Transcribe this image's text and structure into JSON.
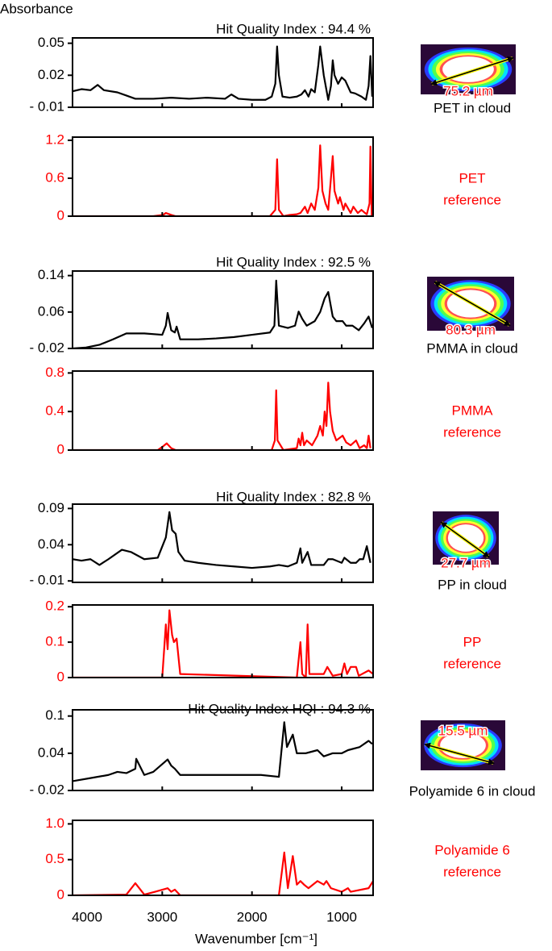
{
  "chart_data": [
    {
      "type": "line",
      "y_label": "Absorbance",
      "title": "Hit Quality Index : 94.4 %",
      "sample_label": "PET in cloud",
      "particle_size": "75.2 µm",
      "color": "#000000",
      "xlim": [
        4000,
        650
      ],
      "xticks": [
        4000,
        3000,
        2000,
        1000
      ],
      "ylim": [
        -0.01,
        0.055
      ],
      "yticks": [
        {
          "value": -0.01,
          "label": "- 0.01"
        },
        0.02,
        0.05
      ],
      "x": [
        4000,
        3900,
        3800,
        3720,
        3650,
        3500,
        3400,
        3300,
        3100,
        2900,
        2700,
        2500,
        2300,
        2230,
        2150,
        2000,
        1850,
        1780,
        1740,
        1720,
        1700,
        1660,
        1580,
        1500,
        1450,
        1410,
        1370,
        1340,
        1300,
        1260,
        1240,
        1200,
        1150,
        1120,
        1100,
        1080,
        1040,
        1000,
        960,
        900,
        850,
        780,
        730,
        700,
        680,
        660
      ],
      "values": [
        0.005,
        0.007,
        0.006,
        0.011,
        0.006,
        0.004,
        0.001,
        -0.002,
        -0.002,
        -0.001,
        -0.002,
        -0.001,
        -0.002,
        0.002,
        -0.002,
        -0.003,
        -0.003,
        0.0,
        0.012,
        0.047,
        0.02,
        0.0,
        -0.001,
        0.0,
        0.002,
        0.006,
        0.0,
        0.007,
        0.004,
        0.03,
        0.047,
        0.02,
        -0.003,
        0.01,
        0.034,
        0.02,
        0.012,
        0.018,
        0.015,
        0.004,
        0.003,
        0.0,
        -0.003,
        0.01,
        0.038,
        0.0
      ]
    },
    {
      "type": "line",
      "sample_label": [
        "PET",
        "reference"
      ],
      "color": "#ff0000",
      "xlim": [
        4000,
        650
      ],
      "xticks": [
        4000,
        3000,
        2000,
        1000
      ],
      "ylim": [
        0,
        1.25
      ],
      "yticks": [
        0,
        0.6,
        1.2
      ],
      "x": [
        4000,
        3100,
        2990,
        2960,
        2900,
        2850,
        1800,
        1740,
        1720,
        1700,
        1650,
        1580,
        1500,
        1460,
        1410,
        1380,
        1340,
        1300,
        1260,
        1240,
        1215,
        1180,
        1150,
        1120,
        1100,
        1080,
        1040,
        1020,
        980,
        960,
        900,
        870,
        820,
        780,
        740,
        720,
        690,
        680,
        665
      ],
      "values": [
        0,
        0,
        0.02,
        0.05,
        0.02,
        0,
        0,
        0.1,
        0.9,
        0.1,
        0,
        0.02,
        0.03,
        0.05,
        0.15,
        0.05,
        0.2,
        0.1,
        0.45,
        1.12,
        0.4,
        0.2,
        0.1,
        0.6,
        0.95,
        0.4,
        0.2,
        0.3,
        0.1,
        0.2,
        0.05,
        0.15,
        0.05,
        0.1,
        0.05,
        0.03,
        0.2,
        1.1,
        0
      ]
    },
    {
      "type": "line",
      "title": "Hit Quality Index : 92.5 %",
      "sample_label": "PMMA in cloud",
      "particle_size": "80.3 µm",
      "color": "#000000",
      "xlim": [
        4000,
        650
      ],
      "xticks": [
        4000,
        3000,
        2000,
        1000
      ],
      "ylim": [
        -0.02,
        0.15
      ],
      "yticks": [
        {
          "value": -0.02,
          "label": "- 0.02"
        },
        0.06,
        0.14
      ],
      "x": [
        4000,
        3850,
        3700,
        3550,
        3400,
        3200,
        3000,
        2960,
        2940,
        2900,
        2860,
        2840,
        2800,
        2600,
        2400,
        2200,
        2000,
        1800,
        1750,
        1730,
        1700,
        1600,
        1520,
        1480,
        1440,
        1390,
        1300,
        1240,
        1190,
        1150,
        1100,
        1060,
        990,
        950,
        880,
        810,
        750,
        700,
        660
      ],
      "values": [
        -0.02,
        -0.018,
        -0.012,
        0.0,
        0.013,
        0.013,
        0.01,
        0.03,
        0.058,
        0.02,
        0.015,
        0.028,
        0.0,
        0.0,
        0.002,
        0.005,
        0.01,
        0.015,
        0.03,
        0.129,
        0.03,
        0.025,
        0.03,
        0.061,
        0.045,
        0.03,
        0.04,
        0.06,
        0.09,
        0.104,
        0.05,
        0.04,
        0.04,
        0.03,
        0.03,
        0.02,
        0.035,
        0.05,
        0.025
      ]
    },
    {
      "type": "line",
      "sample_label": [
        "PMMA",
        "reference"
      ],
      "color": "#ff0000",
      "xlim": [
        4000,
        650
      ],
      "xticks": [
        4000,
        3000,
        2000,
        1000
      ],
      "ylim": [
        0,
        0.82
      ],
      "yticks": [
        0,
        0.4,
        0.8
      ],
      "x": [
        4000,
        3050,
        2990,
        2950,
        2900,
        2850,
        1780,
        1745,
        1730,
        1715,
        1650,
        1500,
        1480,
        1460,
        1440,
        1420,
        1390,
        1330,
        1270,
        1240,
        1210,
        1190,
        1170,
        1150,
        1130,
        1100,
        1060,
        990,
        950,
        900,
        840,
        800,
        750,
        720,
        700,
        680
      ],
      "values": [
        0,
        0,
        0.04,
        0.07,
        0.02,
        0,
        0,
        0.1,
        0.62,
        0.1,
        0,
        0.02,
        0.12,
        0.05,
        0.18,
        0.05,
        0.1,
        0.05,
        0.15,
        0.25,
        0.15,
        0.4,
        0.25,
        0.7,
        0.4,
        0.2,
        0.1,
        0.15,
        0.08,
        0.05,
        0.1,
        0.02,
        0.05,
        0.02,
        0.15,
        0.02
      ]
    },
    {
      "type": "line",
      "title": "Hit Quality Index : 82.8 %",
      "sample_label": "PP in cloud",
      "particle_size": "27.7 µm",
      "color": "#000000",
      "xlim": [
        4000,
        650
      ],
      "xticks": [
        4000,
        3000,
        2000,
        1000
      ],
      "ylim": [
        -0.012,
        0.096
      ],
      "yticks": [
        {
          "value": -0.01,
          "label": "- 0.01"
        },
        0.04,
        0.09
      ],
      "x": [
        4000,
        3900,
        3800,
        3700,
        3600,
        3450,
        3350,
        3200,
        3050,
        2960,
        2920,
        2890,
        2850,
        2820,
        2750,
        2600,
        2400,
        2200,
        2000,
        1800,
        1700,
        1600,
        1500,
        1460,
        1440,
        1380,
        1340,
        1200,
        1150,
        1100,
        1000,
        970,
        900,
        840,
        800,
        760,
        720,
        680
      ],
      "values": [
        0.02,
        0.018,
        0.02,
        0.012,
        0.02,
        0.033,
        0.03,
        0.02,
        0.022,
        0.05,
        0.085,
        0.06,
        0.055,
        0.03,
        0.018,
        0.015,
        0.012,
        0.01,
        0.008,
        0.01,
        0.012,
        0.01,
        0.015,
        0.035,
        0.015,
        0.03,
        0.012,
        0.012,
        0.02,
        0.02,
        0.015,
        0.022,
        0.015,
        0.015,
        0.02,
        0.02,
        0.038,
        0.015
      ]
    },
    {
      "type": "line",
      "sample_label": [
        "PP",
        "reference"
      ],
      "color": "#ff0000",
      "xlim": [
        4000,
        650
      ],
      "xticks": [
        4000,
        3000,
        2000,
        1000
      ],
      "ylim": [
        0,
        0.205
      ],
      "yticks": [
        0,
        0.1,
        0.2
      ],
      "x": [
        4000,
        3000,
        2960,
        2940,
        2920,
        2890,
        2870,
        2840,
        2800,
        1500,
        1460,
        1440,
        1400,
        1380,
        1360,
        1200,
        1160,
        1100,
        1000,
        970,
        940,
        900,
        840,
        810,
        700,
        650
      ],
      "values": [
        0,
        0,
        0.15,
        0.08,
        0.19,
        0.12,
        0.1,
        0.11,
        0.01,
        0,
        0.1,
        0.01,
        0.0,
        0.15,
        0.01,
        0.01,
        0.03,
        0.005,
        0.01,
        0.04,
        0.01,
        0.03,
        0.03,
        0.005,
        0.02,
        0.01
      ]
    },
    {
      "type": "line",
      "title": "Hit Quality Index HQI : 94.3 %",
      "sample_label": "Polyamide 6 in cloud",
      "particle_size": "15.5 µm",
      "color": "#000000",
      "xlim": [
        4000,
        650
      ],
      "xticks": [
        4000,
        3000,
        2000,
        1000
      ],
      "ylim": [
        -0.02,
        0.11
      ],
      "yticks": [
        {
          "value": -0.02,
          "label": "- 0.02"
        },
        0.04,
        0.1
      ],
      "x": [
        4000,
        3800,
        3600,
        3500,
        3400,
        3300,
        3290,
        3200,
        3100,
        2940,
        2900,
        2860,
        2800,
        2500,
        2200,
        1900,
        1700,
        1640,
        1610,
        1545,
        1500,
        1400,
        1270,
        1200,
        1100,
        1000,
        930,
        800,
        700,
        660
      ],
      "values": [
        -0.005,
        0.0,
        0.005,
        0.01,
        0.008,
        0.015,
        0.031,
        0.005,
        0.01,
        0.03,
        0.02,
        0.015,
        0.005,
        0.005,
        0.005,
        0.005,
        0.002,
        0.09,
        0.05,
        0.07,
        0.04,
        0.04,
        0.045,
        0.035,
        0.04,
        0.04,
        0.045,
        0.05,
        0.06,
        0.055
      ]
    },
    {
      "type": "line",
      "sample_label": [
        "Polyamide 6",
        "reference"
      ],
      "color": "#ff0000",
      "x_label": "Wavenumber [cm⁻¹]",
      "xlim": [
        4000,
        650
      ],
      "xticks": [
        4000,
        3000,
        2000,
        1000
      ],
      "ylim": [
        0,
        1.05
      ],
      "yticks": [
        0,
        0.5,
        {
          "value": 1,
          "label": "1.0"
        }
      ],
      "x": [
        4000,
        3400,
        3300,
        3200,
        3080,
        2940,
        2900,
        2860,
        2800,
        1700,
        1640,
        1600,
        1545,
        1500,
        1460,
        1420,
        1370,
        1270,
        1200,
        1170,
        1120,
        1000,
        930,
        900,
        700,
        650
      ],
      "values": [
        0,
        0.01,
        0.17,
        0.01,
        0.05,
        0.1,
        0.05,
        0.08,
        0,
        0,
        0.6,
        0.1,
        0.55,
        0.15,
        0.2,
        0.15,
        0.1,
        0.2,
        0.15,
        0.2,
        0.1,
        0.05,
        0.1,
        0.05,
        0.1,
        0.2
      ]
    }
  ]
}
